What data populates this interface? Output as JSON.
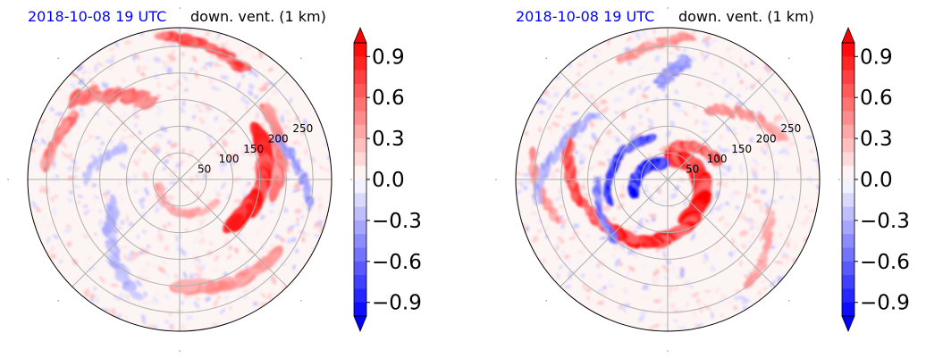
{
  "colors": {
    "date_label": "#0000ff",
    "positive": "#ff0000",
    "negative": "#0000ff",
    "grid": "#b0b0b0"
  },
  "chart_data": [
    {
      "type": "heatmap",
      "subtype": "polar",
      "date_label": "2018-10-08 19 UTC",
      "var_label": "down. vent. (1 km)",
      "radial_ticks": [
        "50",
        "100",
        "150",
        "200",
        "250"
      ],
      "radial_values": [
        50,
        100,
        150,
        200,
        250
      ],
      "rmax": 285,
      "colorbar": {
        "ticks": [
          "0.9",
          "0.6",
          "0.3",
          "0.0",
          "−0.3",
          "−0.6",
          "−0.9"
        ],
        "tick_values": [
          0.9,
          0.6,
          0.3,
          0.0,
          -0.3,
          -0.6,
          -0.9
        ],
        "range": [
          -1.0,
          1.0
        ],
        "extend": "both",
        "cmap": "bwr"
      },
      "features": [
        {
          "sign": 1,
          "r0": 150,
          "r1": 250,
          "a0": 110,
          "a1": 145,
          "w": 9,
          "i": 0.7
        },
        {
          "sign": 1,
          "r0": 240,
          "r1": 270,
          "a0": 60,
          "a1": 95,
          "w": 8,
          "i": 0.8
        },
        {
          "sign": 1,
          "r0": 175,
          "r1": 130,
          "a0": 30,
          "a1": -40,
          "w": 14,
          "i": 1.0
        },
        {
          "sign": 1,
          "r0": 210,
          "r1": 180,
          "a0": 40,
          "a1": -10,
          "w": 10,
          "i": 0.6
        },
        {
          "sign": 1,
          "r0": 230,
          "r1": 200,
          "a0": -40,
          "a1": -90,
          "w": 12,
          "i": 0.5
        },
        {
          "sign": 1,
          "r0": 80,
          "r1": 40,
          "a0": -30,
          "a1": -160,
          "w": 6,
          "i": 0.4
        },
        {
          "sign": 1,
          "r0": 230,
          "r1": 255,
          "a0": 150,
          "a1": 175,
          "w": 7,
          "i": 0.6
        },
        {
          "sign": -1,
          "r0": 130,
          "r1": 230,
          "a0": 200,
          "a1": 250,
          "w": 7,
          "i": 0.35
        },
        {
          "sign": -1,
          "r0": 120,
          "r1": 180,
          "a0": 150,
          "a1": 180,
          "w": 5,
          "i": 0.3
        },
        {
          "sign": -1,
          "r0": 200,
          "r1": 250,
          "a0": 20,
          "a1": -10,
          "w": 5,
          "i": 0.5
        }
      ]
    },
    {
      "type": "heatmap",
      "subtype": "polar",
      "date_label": "2018-10-08 19 UTC",
      "var_label": "down. vent. (1 km)",
      "radial_ticks": [
        "50",
        "100",
        "150",
        "200",
        "250"
      ],
      "radial_values": [
        50,
        100,
        150,
        200,
        250
      ],
      "rmax": 285,
      "colorbar": {
        "ticks": [
          "0.9",
          "0.6",
          "0.3",
          "0.0",
          "−0.3",
          "−0.6",
          "−0.9"
        ],
        "tick_values": [
          0.9,
          0.6,
          0.3,
          0.0,
          -0.3,
          -0.6,
          -0.9
        ],
        "range": [
          -1.0,
          1.0
        ],
        "extend": "both",
        "cmap": "bwr"
      },
      "features": [
        {
          "sign": 1,
          "r0": 40,
          "r1": 80,
          "a0": 70,
          "a1": -60,
          "w": 16,
          "i": 1.0
        },
        {
          "sign": 1,
          "r0": 90,
          "r1": 150,
          "a0": -60,
          "a1": -150,
          "w": 11,
          "i": 1.0
        },
        {
          "sign": 1,
          "r0": 150,
          "r1": 200,
          "a0": -150,
          "a1": -200,
          "w": 8,
          "i": 0.8
        },
        {
          "sign": 1,
          "r0": 60,
          "r1": 100,
          "a0": 80,
          "a1": 20,
          "w": 7,
          "i": 0.8
        },
        {
          "sign": 1,
          "r0": 150,
          "r1": 230,
          "a0": 60,
          "a1": 20,
          "w": 6,
          "i": 0.5
        },
        {
          "sign": 1,
          "r0": 240,
          "r1": 270,
          "a0": 110,
          "a1": 80,
          "w": 6,
          "i": 0.5
        },
        {
          "sign": 1,
          "r0": 220,
          "r1": 260,
          "a0": 200,
          "a1": 170,
          "w": 6,
          "i": 0.5
        },
        {
          "sign": 1,
          "r0": 200,
          "r1": 250,
          "a0": -20,
          "a1": -50,
          "w": 6,
          "i": 0.4
        },
        {
          "sign": -1,
          "r0": 30,
          "r1": 70,
          "a0": 110,
          "a1": 200,
          "w": 8,
          "i": 1.0
        },
        {
          "sign": -1,
          "r0": 80,
          "r1": 120,
          "a0": 110,
          "a1": 200,
          "w": 7,
          "i": 0.9
        },
        {
          "sign": -1,
          "r0": 130,
          "r1": 150,
          "a0": 180,
          "a1": 230,
          "w": 5,
          "i": 0.6
        },
        {
          "sign": -1,
          "r0": 180,
          "r1": 250,
          "a0": 140,
          "a1": 190,
          "w": 6,
          "i": 0.4
        },
        {
          "sign": -1,
          "r0": 180,
          "r1": 230,
          "a0": 95,
          "a1": 80,
          "w": 5,
          "i": 0.5
        }
      ]
    }
  ]
}
